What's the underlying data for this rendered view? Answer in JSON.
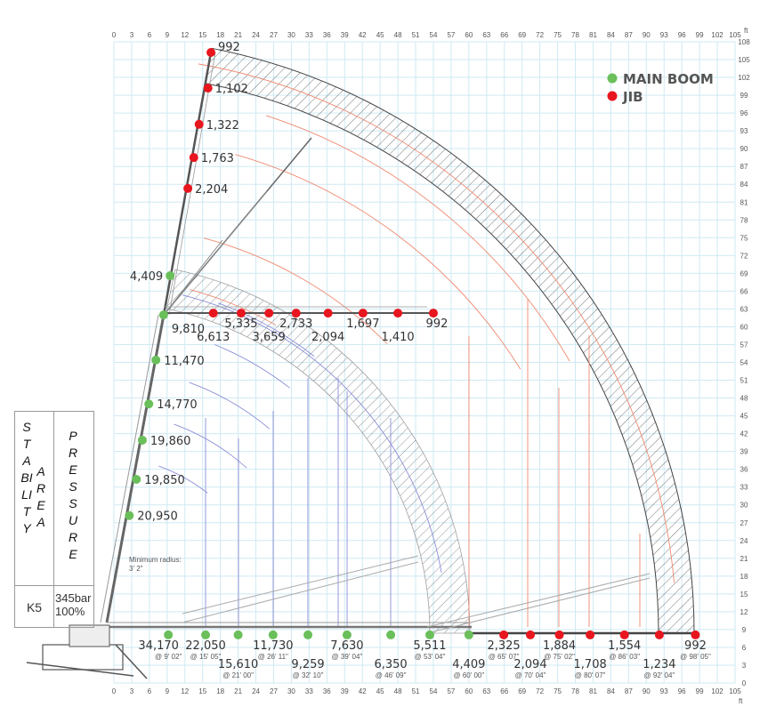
{
  "axes": {
    "unit": "ft",
    "x_ticks": [
      0,
      3,
      6,
      9,
      12,
      15,
      18,
      21,
      24,
      27,
      30,
      33,
      36,
      39,
      42,
      45,
      48,
      51,
      54,
      57,
      60,
      63,
      66,
      69,
      72,
      75,
      78,
      81,
      84,
      87,
      90,
      93,
      96,
      99,
      102,
      105
    ],
    "y_ticks": [
      0,
      3,
      6,
      9,
      12,
      15,
      18,
      21,
      24,
      27,
      30,
      33,
      36,
      39,
      42,
      45,
      48,
      51,
      54,
      57,
      60,
      63,
      66,
      69,
      72,
      75,
      78,
      81,
      84,
      87,
      90,
      93,
      96,
      99,
      102,
      105,
      108
    ],
    "xlim": [
      0,
      105
    ],
    "ylim": [
      0,
      108
    ]
  },
  "legend": {
    "main_boom": {
      "label": "MAIN BOOM",
      "color": "#6abf5a"
    },
    "jib": {
      "label": "JIB",
      "color": "#e8161e"
    }
  },
  "side_table": {
    "col1": "STABILITY",
    "col1b": "AREA",
    "col2": "PRESSURE",
    "model": "K5",
    "pressure": "345bar",
    "percent": "100%"
  },
  "min_radius": {
    "label": "Minimum radius:",
    "value": "3' 2\""
  },
  "main_boom_vertical": [
    {
      "x": 2.6,
      "y": 28.2,
      "load": "20,950"
    },
    {
      "x": 3.8,
      "y": 34.3,
      "load": "19,850"
    },
    {
      "x": 4.8,
      "y": 40.9,
      "load": "19,860"
    },
    {
      "x": 5.9,
      "y": 47.0,
      "load": "14,770"
    },
    {
      "x": 7.1,
      "y": 54.4,
      "load": "11,470"
    },
    {
      "x": 8.4,
      "y": 62.0,
      "load": "9,810"
    },
    {
      "x": 9.5,
      "y": 68.6,
      "load": "4,409"
    }
  ],
  "main_boom_horizontal": [
    {
      "x": 9.2,
      "y": 8.1,
      "load": "34,170",
      "radius": "@ 9' 02\""
    },
    {
      "x": 15.5,
      "y": 8.1,
      "load": "22,050",
      "radius": "@ 15' 05\""
    },
    {
      "x": 21.0,
      "y": 8.1,
      "load": "15,610",
      "radius": "@ 21' 00\""
    },
    {
      "x": 26.9,
      "y": 8.1,
      "load": "11,730",
      "radius": "@ 26' 11\""
    },
    {
      "x": 32.8,
      "y": 8.1,
      "load": "9,259",
      "radius": "@ 32' 10\""
    },
    {
      "x": 39.4,
      "y": 8.1,
      "load": "7,630",
      "radius": "@ 39' 04\""
    },
    {
      "x": 46.8,
      "y": 8.1,
      "load": "6,350",
      "radius": "@ 46' 09\""
    },
    {
      "x": 53.4,
      "y": 8.1,
      "load": "5,511",
      "radius": "@ 53' 04\""
    },
    {
      "x": 60.0,
      "y": 8.1,
      "load": "4,409",
      "radius": "@ 60' 00\""
    }
  ],
  "jib_vertical": [
    {
      "x": 16.4,
      "y": 106.2,
      "load": "992"
    },
    {
      "x": 15.9,
      "y": 100.2,
      "load": "1,102"
    },
    {
      "x": 14.4,
      "y": 94.1,
      "load": "1,322"
    },
    {
      "x": 13.5,
      "y": 88.5,
      "load": "1,763"
    },
    {
      "x": 12.5,
      "y": 83.3,
      "load": "2,204"
    }
  ],
  "jib_mid": [
    {
      "x": 16.8,
      "y": 62.3,
      "load": "6,613"
    },
    {
      "x": 21.5,
      "y": 62.3,
      "load": "5,335"
    },
    {
      "x": 26.2,
      "y": 62.3,
      "load": "3,659"
    },
    {
      "x": 30.8,
      "y": 62.3,
      "load": "2,733"
    },
    {
      "x": 36.2,
      "y": 62.3,
      "load": "2,094"
    },
    {
      "x": 42.1,
      "y": 62.3,
      "load": "1,697"
    },
    {
      "x": 48.0,
      "y": 62.3,
      "load": "1,410"
    },
    {
      "x": 54.0,
      "y": 62.3,
      "load": "992"
    }
  ],
  "jib_horizontal": [
    {
      "x": 65.9,
      "y": 8.1,
      "load": "2,325",
      "radius": "@ 65' 07\""
    },
    {
      "x": 70.4,
      "y": 8.1,
      "load": "2,094",
      "radius": "@ 70' 04\""
    },
    {
      "x": 75.3,
      "y": 8.1,
      "load": "1,884",
      "radius": "@ 75' 02\""
    },
    {
      "x": 80.5,
      "y": 8.1,
      "load": "1,708",
      "radius": "@ 80' 07\""
    },
    {
      "x": 86.3,
      "y": 8.1,
      "load": "1,554",
      "radius": "@ 86' 03\""
    },
    {
      "x": 92.2,
      "y": 8.1,
      "load": "1,234",
      "radius": "@ 92' 04\""
    },
    {
      "x": 98.3,
      "y": 8.1,
      "load": "992",
      "radius": "@ 98' 05\""
    }
  ]
}
